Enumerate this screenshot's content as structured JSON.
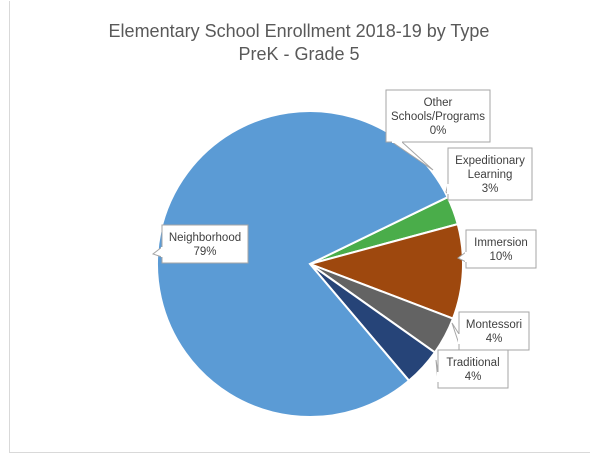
{
  "chart_data": {
    "type": "pie",
    "title": "Elementary School Enrollment 2018-19 by Type",
    "subtitle": "PreK - Grade 5",
    "slices": [
      {
        "label": "Other Schools/Programs",
        "label_lines": [
          "Other",
          "Schools/Programs"
        ],
        "value": 0,
        "value_label": "0%",
        "color": "#4472c4"
      },
      {
        "label": "Expeditionary Learning",
        "label_lines": [
          "Expeditionary",
          "Learning"
        ],
        "value": 3,
        "value_label": "3%",
        "color": "#4aad4a"
      },
      {
        "label": "Immersion",
        "label_lines": [
          "Immersion"
        ],
        "value": 10,
        "value_label": "10%",
        "color": "#9e480e"
      },
      {
        "label": "Montessori",
        "label_lines": [
          "Montessori"
        ],
        "value": 4,
        "value_label": "4%",
        "color": "#636363"
      },
      {
        "label": "Traditional",
        "label_lines": [
          "Traditional"
        ],
        "value": 4,
        "value_label": "4%",
        "color": "#264478"
      },
      {
        "label": "Neighborhood",
        "label_lines": [
          "Neighborhood"
        ],
        "value": 79,
        "value_label": "79%",
        "color": "#5b9bd5"
      }
    ],
    "legend": "none"
  }
}
